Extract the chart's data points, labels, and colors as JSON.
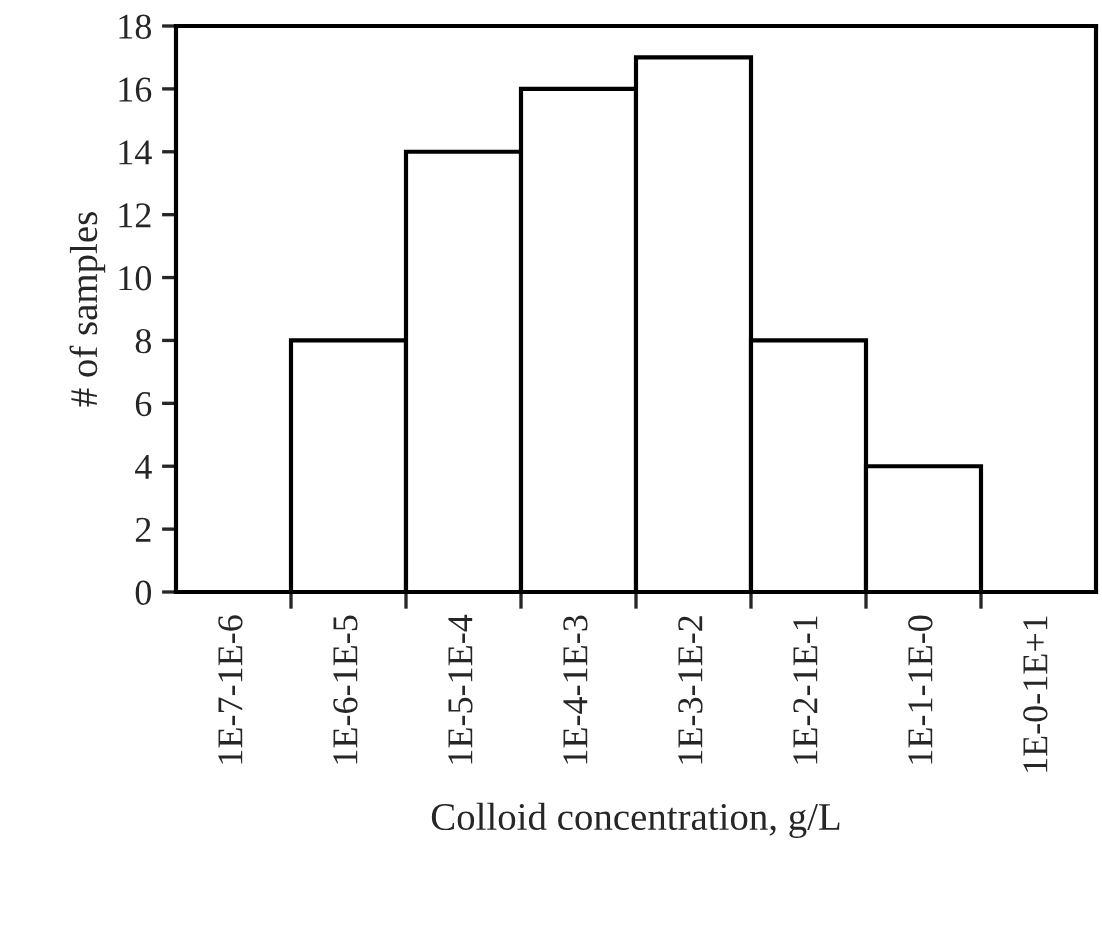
{
  "chart_data": {
    "type": "bar",
    "xlabel": "Colloid concentration, g/L",
    "ylabel": "# of samples",
    "categories": [
      "1E-7-1E-6",
      "1E-6-1E-5",
      "1E-5-1E-4",
      "1E-4-1E-3",
      "1E-3-1E-2",
      "1E-2-1E-1",
      "1E-1-1E-0",
      "1E-0-1E+1"
    ],
    "values": [
      0,
      8,
      14,
      16,
      17,
      8,
      4,
      0
    ],
    "color": "#ffffff",
    "ylim": [
      0,
      18
    ],
    "yticks": [
      0,
      2,
      4,
      6,
      8,
      10,
      12,
      14,
      16,
      18
    ],
    "grid": false,
    "legend": false
  }
}
